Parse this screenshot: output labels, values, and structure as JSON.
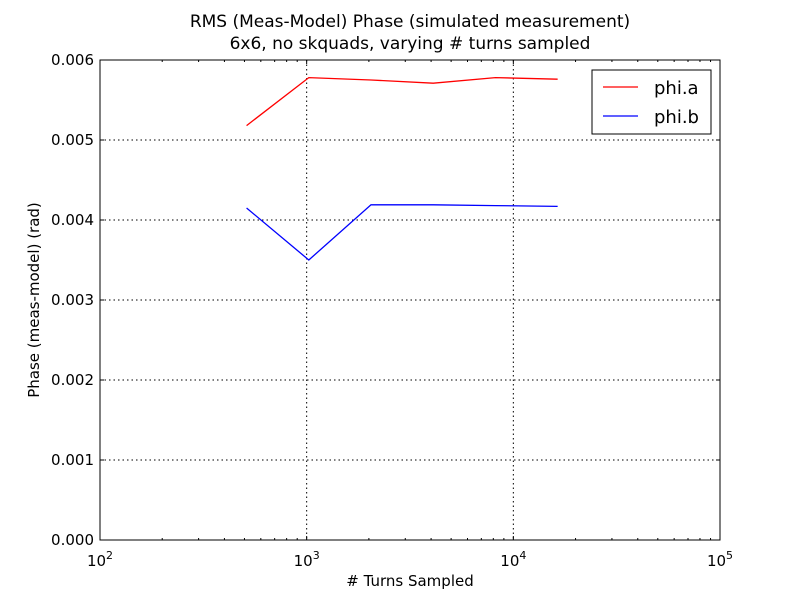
{
  "chart_data": {
    "type": "line",
    "title": "RMS (Meas-Model) Phase (simulated measurement)",
    "subtitle": "6x6, no skquads, varying # turns sampled",
    "xlabel": "# Turns Sampled",
    "ylabel": "Phase (meas-model) (rad)",
    "xscale": "log",
    "xlim": [
      100,
      100000
    ],
    "ylim": [
      0,
      0.006
    ],
    "grid": true,
    "legend_position": "top-right",
    "x_ticks": [
      {
        "value": 100,
        "base": "10",
        "exp": "2"
      },
      {
        "value": 1000,
        "base": "10",
        "exp": "3"
      },
      {
        "value": 10000,
        "base": "10",
        "exp": "4"
      },
      {
        "value": 100000,
        "base": "10",
        "exp": "5"
      }
    ],
    "y_ticks": [
      {
        "value": 0,
        "label": "0.000"
      },
      {
        "value": 0.001,
        "label": "0.001"
      },
      {
        "value": 0.002,
        "label": "0.002"
      },
      {
        "value": 0.003,
        "label": "0.003"
      },
      {
        "value": 0.004,
        "label": "0.004"
      },
      {
        "value": 0.005,
        "label": "0.005"
      },
      {
        "value": 0.006,
        "label": "0.006"
      }
    ],
    "x": [
      512,
      1024,
      2048,
      4096,
      8192,
      16384
    ],
    "series": [
      {
        "name": "phi.a",
        "color": "#ff0000",
        "values": [
          0.00518,
          0.00578,
          0.00575,
          0.00571,
          0.00578,
          0.00576
        ]
      },
      {
        "name": "phi.b",
        "color": "#0000ff",
        "values": [
          0.00415,
          0.0035,
          0.00419,
          0.00419,
          0.00418,
          0.00417
        ]
      }
    ]
  }
}
